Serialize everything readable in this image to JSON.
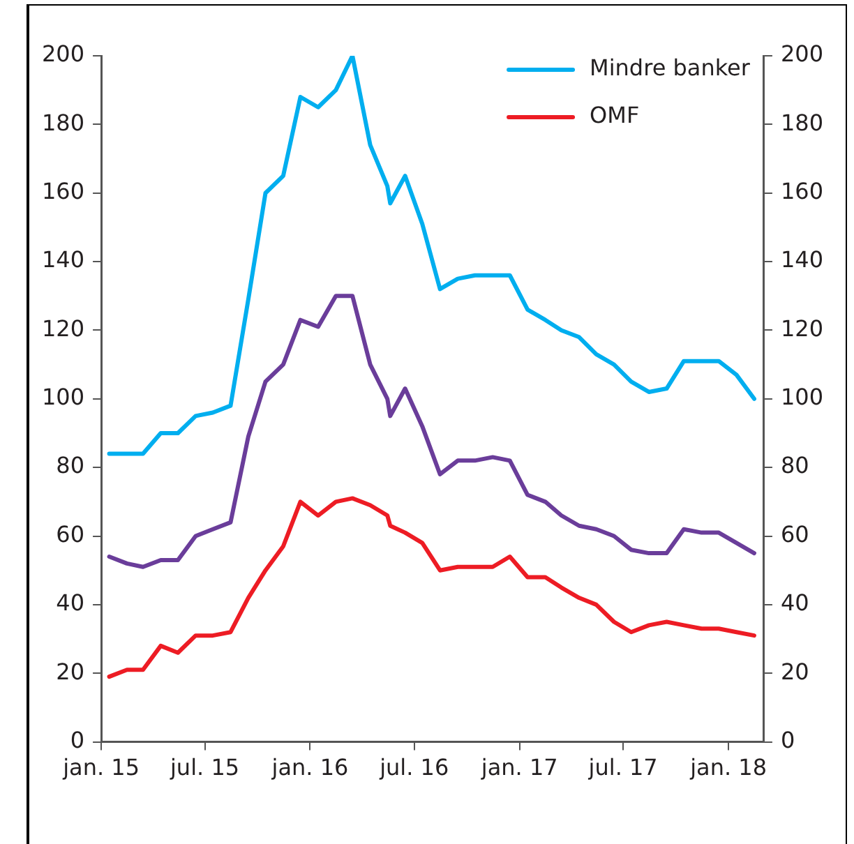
{
  "chart_data": {
    "type": "line",
    "x": [
      "2015-01-15",
      "2015-02-15",
      "2015-03-15",
      "2015-04-15",
      "2015-05-15",
      "2015-06-15",
      "2015-07-15",
      "2015-08-15",
      "2015-09-15",
      "2015-10-15",
      "2015-11-15",
      "2015-12-15",
      "2016-01-15",
      "2016-02-15",
      "2016-03-15",
      "2016-04-15",
      "2016-05-15",
      "2016-05-20",
      "2016-06-15",
      "2016-07-15",
      "2016-08-15",
      "2016-09-15",
      "2016-10-15",
      "2016-11-15",
      "2016-12-15",
      "2017-01-15",
      "2017-02-15",
      "2017-03-15",
      "2017-04-15",
      "2017-05-15",
      "2017-06-15",
      "2017-07-15",
      "2017-08-15",
      "2017-09-15",
      "2017-10-15",
      "2017-11-15",
      "2017-12-15",
      "2018-01-15",
      "2018-02-15"
    ],
    "series": [
      {
        "name": "Mindre banker",
        "color": "#00aeef",
        "values": [
          84,
          84,
          84,
          90,
          90,
          95,
          96,
          98,
          129,
          160,
          165,
          188,
          185,
          190,
          200,
          174,
          162,
          157,
          165,
          151,
          132,
          135,
          136,
          136,
          136,
          126,
          123,
          120,
          118,
          113,
          110,
          105,
          102,
          103,
          111,
          111,
          111,
          107,
          100
        ]
      },
      {
        "name": "OMF",
        "color": "#ed1c24",
        "values": [
          19,
          21,
          21,
          28,
          26,
          31,
          31,
          32,
          42,
          50,
          57,
          70,
          66,
          70,
          71,
          69,
          66,
          63,
          61,
          58,
          50,
          51,
          51,
          51,
          54,
          48,
          48,
          45,
          42,
          40,
          35,
          32,
          34,
          35,
          34,
          33,
          33,
          32,
          31
        ]
      },
      {
        "color": "#6a3d9a",
        "values": [
          54,
          52,
          51,
          53,
          53,
          60,
          62,
          64,
          89,
          105,
          110,
          123,
          121,
          130,
          130,
          110,
          100,
          95,
          103,
          92,
          78,
          82,
          82,
          83,
          82,
          72,
          70,
          66,
          63,
          62,
          60,
          56,
          55,
          55,
          62,
          61,
          61,
          58,
          55
        ]
      }
    ],
    "xlim": [
      "2015-01-01",
      "2018-03-04"
    ],
    "xticks": [
      {
        "value": "2015-01-01",
        "label": "jan. 15"
      },
      {
        "value": "2015-07-01",
        "label": "jul. 15"
      },
      {
        "value": "2016-01-01",
        "label": "jan. 16"
      },
      {
        "value": "2016-07-01",
        "label": "jul. 16"
      },
      {
        "value": "2017-01-01",
        "label": "jan. 17"
      },
      {
        "value": "2017-07-01",
        "label": "jul. 17"
      },
      {
        "value": "2018-01-01",
        "label": "jan. 18"
      }
    ],
    "ylim": [
      0,
      200
    ],
    "yticks": [
      0,
      20,
      40,
      60,
      80,
      100,
      120,
      140,
      160,
      180,
      200
    ],
    "y2lim": [
      0,
      200
    ],
    "y2ticks": [
      0,
      20,
      40,
      60,
      80,
      100,
      120,
      140,
      160,
      180,
      200
    ],
    "legend": "top right",
    "grid": false,
    "marker": "none",
    "line_style": "solid"
  }
}
